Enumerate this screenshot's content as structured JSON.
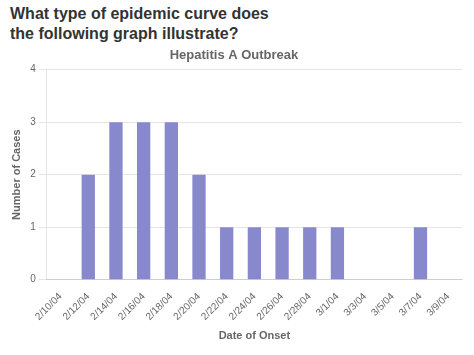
{
  "chart_data": {
    "type": "bar",
    "title": "Hepatitis A Outbreak",
    "annotations": [
      "What type of epidemic curve does",
      "the following graph illustrate?"
    ],
    "x_label": "Date of Onset",
    "y_label": "Number of Cases",
    "categories": [
      "2/10/04",
      "2/12/04",
      "2/14/04",
      "2/16/04",
      "2/18/04",
      "2/20/04",
      "2/22/04",
      "2/24/04",
      "2/26/04",
      "2/28/04",
      "3/1/04",
      "3/3/04",
      "3/5/04",
      "3/7/04",
      "3/9/04"
    ],
    "values": [
      0,
      2,
      3,
      3,
      3,
      2,
      1,
      1,
      1,
      1,
      1,
      0,
      0,
      1,
      0
    ],
    "color": "#8888cc",
    "ylim": [
      0,
      4
    ],
    "yticks": [
      0,
      1,
      2,
      3,
      4
    ],
    "grid": true
  }
}
